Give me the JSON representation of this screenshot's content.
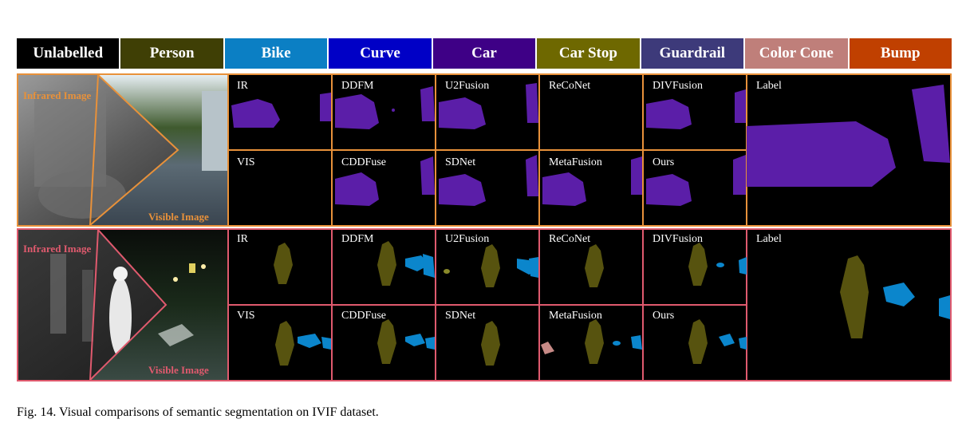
{
  "legend": [
    {
      "label": "Unlabelled",
      "color": "#000000"
    },
    {
      "label": "Person",
      "color": "#3f3f05"
    },
    {
      "label": "Bike",
      "color": "#0b7fc4"
    },
    {
      "label": "Curve",
      "color": "#0000c6"
    },
    {
      "label": "Car",
      "color": "#3e0086"
    },
    {
      "label": "Car Stop",
      "color": "#6e6800"
    },
    {
      "label": "Guardrail",
      "color": "#3d3a7a"
    },
    {
      "label": "Color Cone",
      "color": "#bf7f7a"
    },
    {
      "label": "Bump",
      "color": "#c04000"
    }
  ],
  "row1": {
    "infrared_label": "Infrared Image",
    "visible_label": "Visible Image",
    "labels": [
      "IR",
      "DDFM",
      "U2Fusion",
      "ReCoNet",
      "DIVFusion",
      "VIS",
      "CDDFuse",
      "SDNet",
      "MetaFusion",
      "Ours"
    ],
    "gt_label": "Label",
    "border_color": "#e8913a"
  },
  "row2": {
    "infrared_label": "Infrared Image",
    "visible_label": "Visible Image",
    "labels": [
      "IR",
      "DDFM",
      "U2Fusion",
      "ReCoNet",
      "DIVFusion",
      "VIS",
      "CDDFuse",
      "SDNet",
      "MetaFusion",
      "Ours"
    ],
    "gt_label": "Label",
    "border_color": "#e05a6e"
  },
  "caption": "Fig. 14.  Visual comparisons of semantic segmentation on IVIF dataset."
}
